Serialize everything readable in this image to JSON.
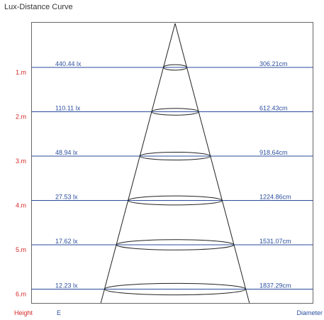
{
  "title": "Lux-Distance Curve",
  "colors": {
    "height_label": "#d42a2a",
    "value_label": "#2b4f9e",
    "level_line": "#2a4a9a",
    "frame": "#666666",
    "cone": "#222222"
  },
  "footer": {
    "height_label": "Height",
    "e_label": "E",
    "diameter_label": "Diameter"
  },
  "chart_data": {
    "type": "table",
    "height_unit": "m",
    "lux_unit": "lx",
    "diameter_unit": "cm",
    "levels": [
      {
        "height_label": "1.m",
        "height": 1,
        "lux_label": "440.44 lx",
        "lux": 440.44,
        "diameter_label": "306.21cm",
        "diameter": 306.21
      },
      {
        "height_label": "2.m",
        "height": 2,
        "lux_label": "110.11 lx",
        "lux": 110.11,
        "diameter_label": "612.43cm",
        "diameter": 612.43
      },
      {
        "height_label": "3.m",
        "height": 3,
        "lux_label": "48.94 lx",
        "lux": 48.94,
        "diameter_label": "918.64cm",
        "diameter": 918.64
      },
      {
        "height_label": "4.m",
        "height": 4,
        "lux_label": "27.53 lx",
        "lux": 27.53,
        "diameter_label": "1224.86cm",
        "diameter": 1224.86
      },
      {
        "height_label": "5.m",
        "height": 5,
        "lux_label": "17.62 lx",
        "lux": 17.62,
        "diameter_label": "1531.07cm",
        "diameter": 1531.07
      },
      {
        "height_label": "6.m",
        "height": 6,
        "lux_label": "12.23 lx",
        "lux": 12.23,
        "diameter_label": "1837.29cm",
        "diameter": 1837.29
      }
    ]
  }
}
